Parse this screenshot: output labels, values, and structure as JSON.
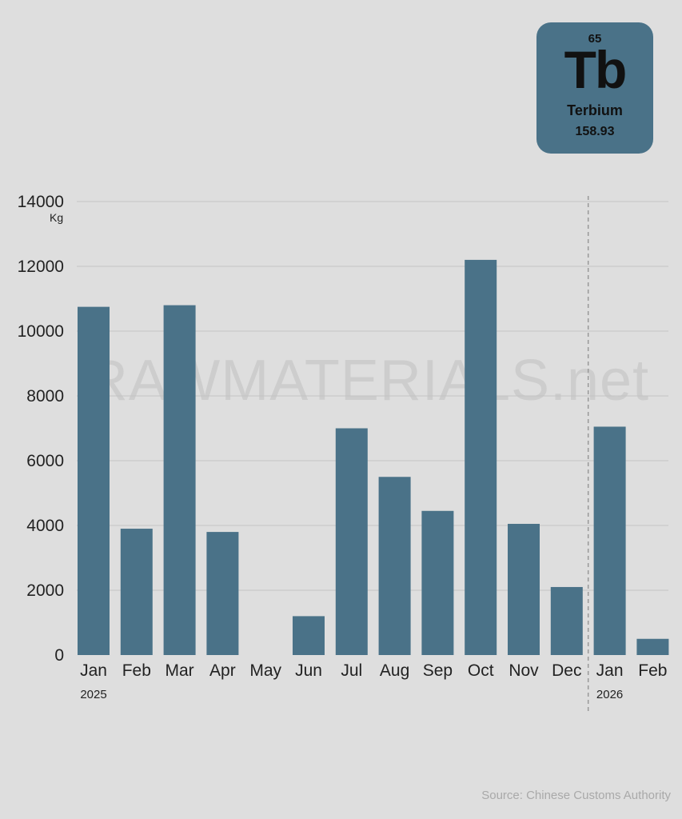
{
  "element": {
    "atomic_number": "65",
    "symbol": "Tb",
    "name": "Terbium",
    "mass": "158.93"
  },
  "watermark": "RAWMATERIALS.net",
  "source": "Source: Chinese Customs Authority",
  "colors": {
    "background": "#dedede",
    "bar": "#4a7288",
    "card": "#4a7288",
    "grid": "#c4c4c4",
    "divider": "#999999"
  },
  "chart_data": {
    "type": "bar",
    "unit_label": "Kg",
    "ylim": [
      0,
      14000
    ],
    "yticks": [
      0,
      2000,
      4000,
      6000,
      8000,
      10000,
      12000,
      14000
    ],
    "grid": true,
    "categories": [
      "Jan",
      "Feb",
      "Mar",
      "Apr",
      "May",
      "Jun",
      "Jul",
      "Aug",
      "Sep",
      "Oct",
      "Nov",
      "Dec",
      "Jan",
      "Feb"
    ],
    "values": [
      10750,
      3900,
      10800,
      3800,
      0,
      1200,
      7000,
      5500,
      4450,
      12200,
      4050,
      2100,
      7050,
      500
    ],
    "year_groups": [
      {
        "label": "2025",
        "start_index": 0
      },
      {
        "label": "2026",
        "start_index": 12
      }
    ]
  }
}
